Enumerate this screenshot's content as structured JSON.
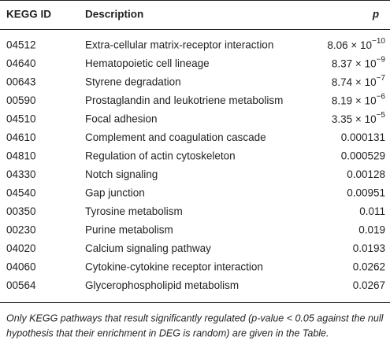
{
  "table": {
    "header": [
      "KEGG ID",
      "Description",
      "p"
    ],
    "rows": [
      [
        "04512",
        "Extra-cellular matrix-receptor interaction",
        {
          "base": "8.06 × 10",
          "exp": "−10"
        }
      ],
      [
        "04640",
        "Hematopoietic cell lineage",
        {
          "base": "8.37 × 10",
          "exp": "−9"
        }
      ],
      [
        "00643",
        "Styrene degradation",
        {
          "base": "8.74 × 10",
          "exp": "−7"
        }
      ],
      [
        "00590",
        "Prostaglandin and leukotriene metabolism",
        {
          "base": "8.19 × 10",
          "exp": "−6"
        }
      ],
      [
        "04510",
        "Focal adhesion",
        {
          "base": "3.35 × 10",
          "exp": "−5"
        }
      ],
      [
        "04610",
        "Complement and coagulation cascade",
        "0.000131"
      ],
      [
        "04810",
        "Regulation of actin cytoskeleton",
        "0.000529"
      ],
      [
        "04330",
        "Notch signaling",
        "0.00128"
      ],
      [
        "04540",
        "Gap junction",
        "0.00951"
      ],
      [
        "00350",
        "Tyrosine metabolism",
        "0.011"
      ],
      [
        "00230",
        "Purine metabolism",
        "0.019"
      ],
      [
        "04020",
        "Calcium signaling pathway",
        "0.0193"
      ],
      [
        "04060",
        "Cytokine-cytokine receptor interaction",
        "0.0262"
      ],
      [
        "00564",
        "Glycerophospholipid metabolism",
        "0.0267"
      ]
    ],
    "footnote": [
      "Only KEGG pathways that result significantly regulated (p-value < 0.05 against the null",
      "hypothesis that their enrichment in DEG is random) are given in the Table."
    ]
  }
}
